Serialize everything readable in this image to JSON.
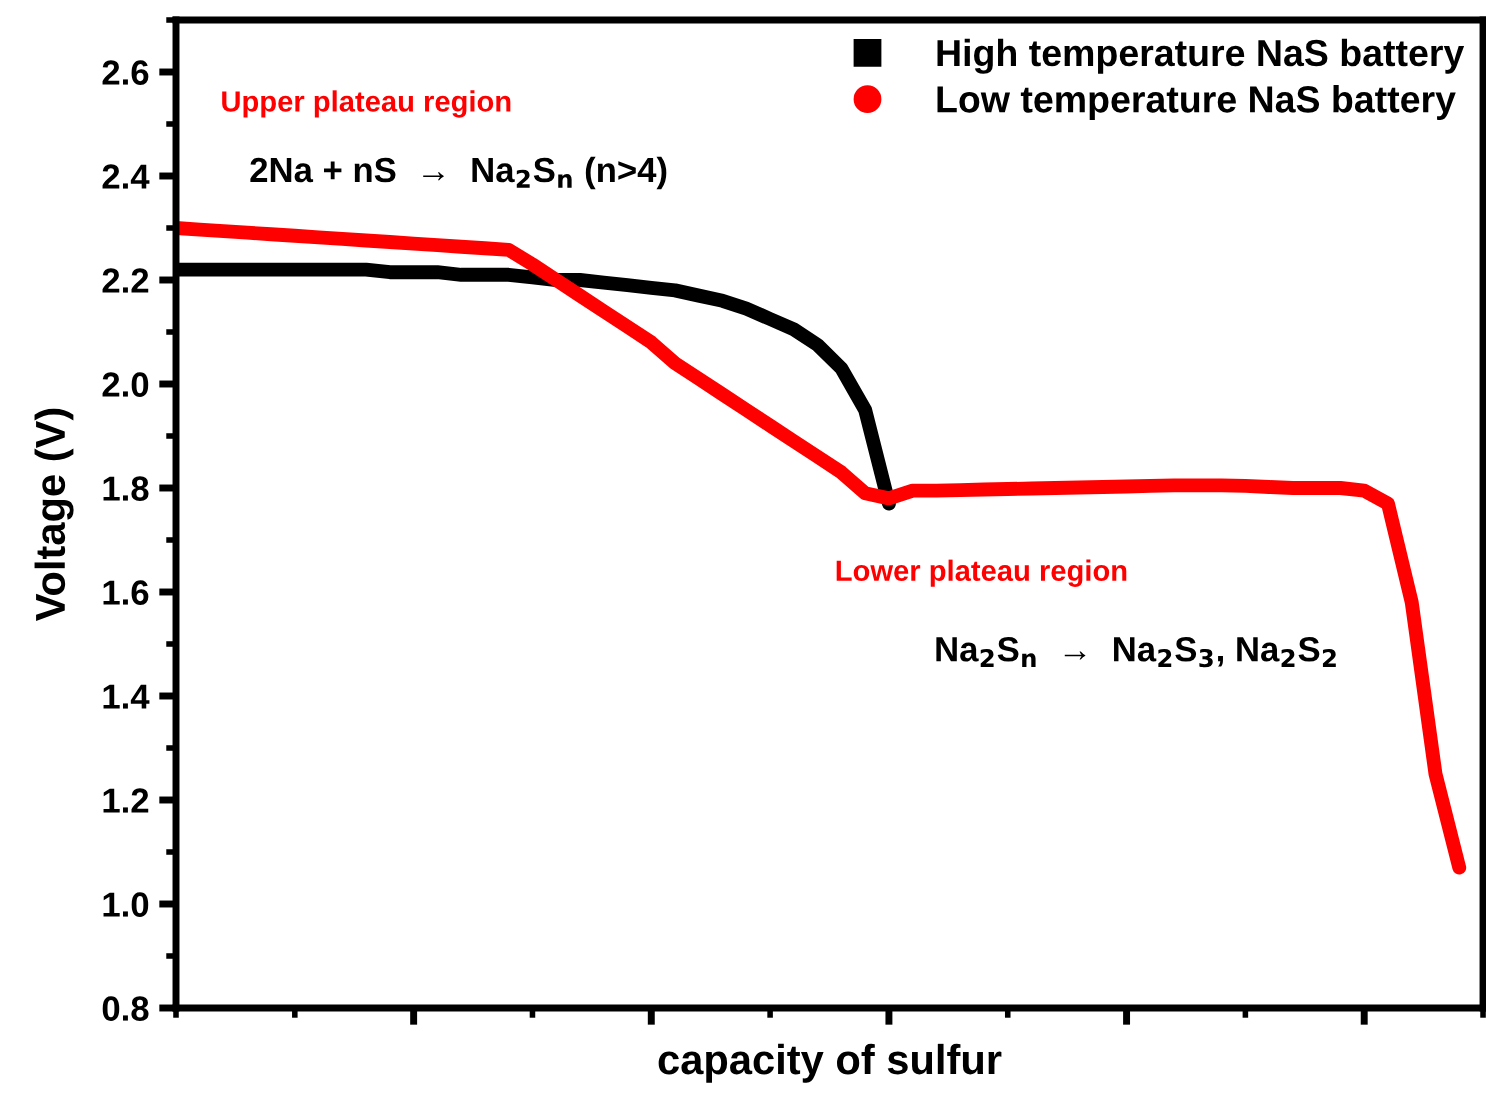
{
  "chart_data": {
    "type": "line",
    "xlabel": "capacity of sulfur",
    "ylabel": "Voltage (V)",
    "categories": [
      null,
      null,
      null,
      null,
      null,
      null,
      null,
      null,
      null,
      null,
      null,
      null,
      null,
      null,
      null,
      null,
      null,
      null,
      null,
      null,
      null,
      null,
      null,
      null,
      null,
      null,
      null,
      null,
      null,
      null,
      null,
      null,
      null,
      null,
      null,
      null,
      null,
      null,
      null,
      null,
      null,
      null,
      null,
      null,
      null,
      null,
      null,
      null,
      null,
      null,
      null,
      null,
      null,
      null,
      null
    ],
    "series": [
      {
        "name": "High temperature NaS battery",
        "color": "#000000",
        "values": [
          2.22,
          2.22,
          2.22,
          2.22,
          2.22,
          2.22,
          2.22,
          2.22,
          2.22,
          2.215,
          2.215,
          2.215,
          2.21,
          2.21,
          2.21,
          2.205,
          2.2,
          2.2,
          2.195,
          2.19,
          2.185,
          2.18,
          2.17,
          2.16,
          2.145,
          2.125,
          2.105,
          2.075,
          2.03,
          1.95,
          1.77,
          null,
          null,
          null,
          null,
          null,
          null,
          null,
          null,
          null,
          null,
          null,
          null,
          null,
          null,
          null,
          null,
          null,
          null,
          null,
          null,
          null,
          null,
          null,
          null
        ]
      },
      {
        "name": "Low temperature NaS battery",
        "color": "#ff0000",
        "values": [
          2.3,
          2.297,
          2.294,
          2.291,
          2.288,
          2.285,
          2.282,
          2.279,
          2.276,
          2.273,
          2.27,
          2.267,
          2.264,
          2.261,
          2.258,
          2.23,
          2.2,
          2.17,
          2.14,
          2.11,
          2.08,
          2.04,
          2.01,
          1.98,
          1.95,
          1.92,
          1.89,
          1.86,
          1.83,
          1.79,
          1.78,
          1.795,
          1.795,
          1.796,
          1.797,
          1.798,
          1.799,
          1.8,
          1.801,
          1.802,
          1.803,
          1.804,
          1.805,
          1.805,
          1.805,
          1.804,
          1.802,
          1.8,
          1.8,
          1.8,
          1.795,
          1.77,
          1.58,
          1.25,
          1.07
        ]
      }
    ],
    "ylim": [
      0.8,
      2.7
    ],
    "yticks": [
      0.8,
      {
        "value": 1,
        "label": "1.0"
      },
      1.2,
      1.4,
      1.6,
      1.8,
      {
        "value": 2,
        "label": "2.0"
      },
      2.2,
      2.4,
      2.6
    ],
    "tick_labels": "y",
    "grid": false,
    "legend": "top right",
    "annotations": [
      "Upper plateau region",
      "2Na + nS  →  Na$_{2}$S$_{n}$ (n>4)",
      "Lower plateau region",
      "Na$_{2}$S$_{n}$  →  Na$_{2}$S$_{3}$, Na$_{2}$S$_{2}$"
    ]
  }
}
